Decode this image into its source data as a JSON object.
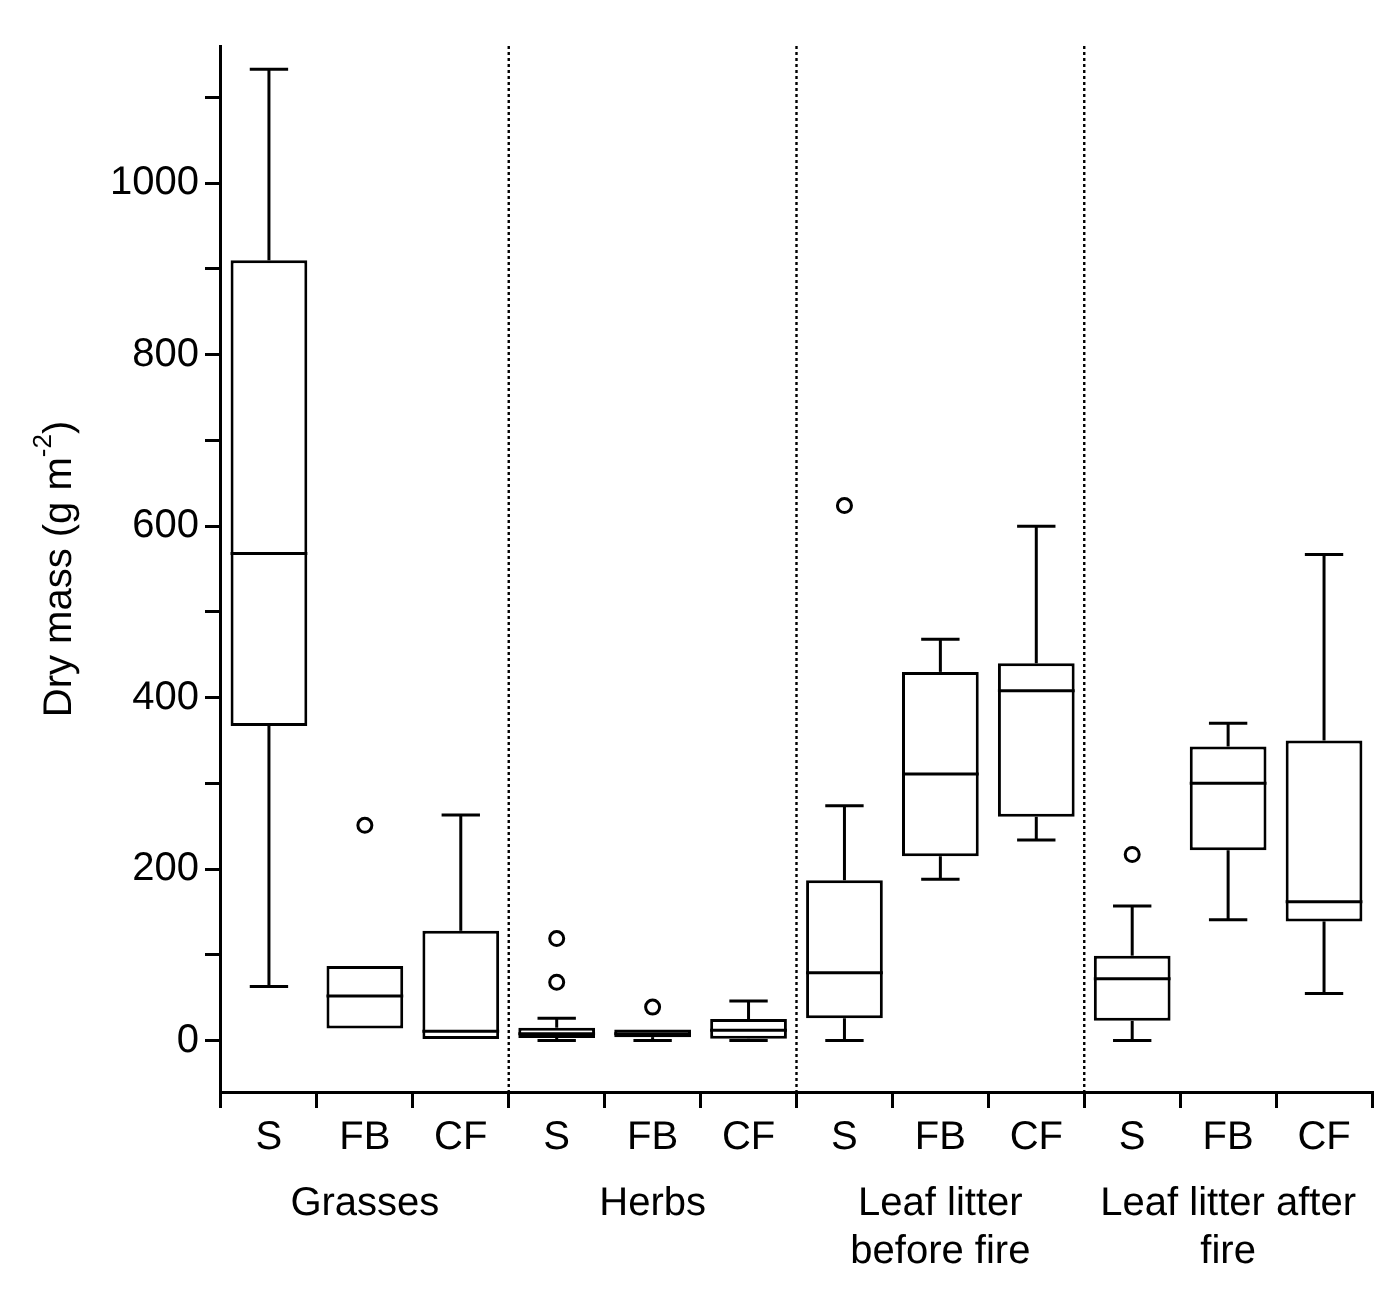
{
  "chart_data": {
    "type": "box",
    "ylabel": "Dry mass (g m$^{-2}$)",
    "categories": [
      "S",
      "FB",
      "CF",
      "S",
      "FB",
      "CF",
      "S",
      "FB",
      "CF",
      "S",
      "FB",
      "CF"
    ],
    "boxes": [
      {
        "low": 63,
        "q1": 367,
        "median": 568,
        "q3": 910,
        "high": 1133
      },
      {
        "low": 14,
        "q1": 14,
        "median": 52,
        "q3": 87,
        "high": 87,
        "outliers": [
          251
        ]
      },
      {
        "low": 0,
        "q1": 0,
        "median": 11,
        "q3": 128,
        "high": 263
      },
      {
        "low": 0,
        "q1": 3,
        "median": 8,
        "q3": 15,
        "high": 26,
        "outliers": [
          119,
          68
        ]
      },
      {
        "low": 0,
        "q1": 4,
        "median": 8,
        "q3": 13,
        "high": 13,
        "outliers": [
          39
        ]
      },
      {
        "low": 0,
        "q1": 2,
        "median": 12,
        "q3": 25,
        "high": 46
      },
      {
        "low": 0,
        "q1": 26,
        "median": 79,
        "q3": 187,
        "high": 274,
        "outliers": [
          624
        ]
      },
      {
        "low": 188,
        "q1": 215,
        "median": 311,
        "q3": 430,
        "high": 468
      },
      {
        "low": 234,
        "q1": 261,
        "median": 408,
        "q3": 440,
        "high": 600
      },
      {
        "low": 0,
        "q1": 23,
        "median": 72,
        "q3": 99,
        "high": 157,
        "outliers": [
          217
        ]
      },
      {
        "low": 141,
        "q1": 222,
        "median": 300,
        "q3": 343,
        "high": 370
      },
      {
        "low": 55,
        "q1": 139,
        "median": 162,
        "q3": 350,
        "high": 567
      }
    ],
    "annotations": [
      "Grasses",
      "Herbs",
      "Leaf litter before fire",
      "Leaf litter after fire"
    ],
    "ylim": [
      -60,
      1160
    ],
    "yticks": [
      0,
      {
        "value": 100,
        "label": null
      },
      200,
      {
        "value": 300,
        "label": null
      },
      400,
      {
        "value": 500,
        "label": null
      },
      600,
      {
        "value": 700,
        "label": null
      },
      800,
      {
        "value": 900,
        "label": null
      },
      1000,
      {
        "value": 1100,
        "label": null
      }
    ],
    "grid": false,
    "legend": false
  }
}
